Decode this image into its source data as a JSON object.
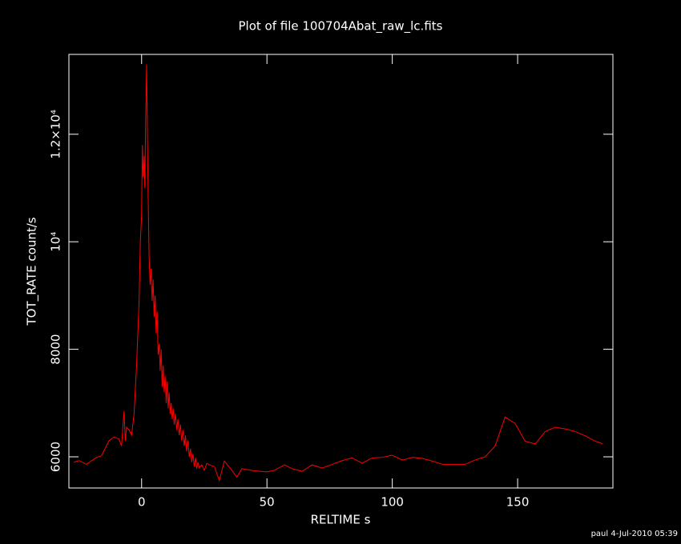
{
  "chart_data": {
    "type": "line",
    "title": "Plot of file 100704Abat_raw_lc.fits",
    "xlabel": "RELTIME  s",
    "ylabel": "TOT_RATE  count/s",
    "footer": "paul  4-Jul-2010 05:39",
    "xlim": [
      -29,
      188
    ],
    "ylim": [
      5420,
      13485
    ],
    "xticks": [
      0,
      50,
      100,
      150
    ],
    "yticks": [
      6000,
      8000,
      {
        "value": 10000,
        "label": "10⁴"
      },
      {
        "value": 12000,
        "label": "1.2×10⁴"
      }
    ],
    "x": [
      -27,
      -25,
      -22,
      -18,
      -16,
      -13,
      -11,
      -9,
      -8,
      -7,
      -6.5,
      -6,
      -5,
      -4,
      -3,
      -2,
      -1,
      -0.5,
      0,
      0.3,
      0.6,
      1,
      1.3,
      1.6,
      2,
      2.3,
      2.6,
      3,
      3.4,
      3.8,
      4.2,
      4.6,
      5,
      5.4,
      5.8,
      6.2,
      6.6,
      7,
      7.4,
      7.8,
      8.2,
      8.6,
      9,
      9.4,
      9.8,
      10.2,
      10.6,
      11,
      11.4,
      11.8,
      12.2,
      12.6,
      13,
      13.5,
      14,
      14.5,
      15,
      15.5,
      16,
      16.5,
      17,
      17.5,
      18,
      18.5,
      19,
      19.5,
      20,
      20.5,
      21,
      21.5,
      22,
      22.5,
      23,
      24,
      25,
      26,
      27,
      29,
      31,
      33,
      36,
      38,
      40,
      45,
      50,
      53,
      57,
      60,
      64,
      68,
      72,
      76,
      80,
      84,
      88,
      92,
      96,
      100,
      104,
      108,
      112,
      116,
      120,
      125,
      129,
      133,
      137,
      141,
      145,
      149,
      153,
      157,
      161,
      165,
      169,
      173,
      177,
      181,
      184
    ],
    "series": [
      {
        "name": "TOT_RATE",
        "color": "#ff0000",
        "values": [
          5900,
          5930,
          5860,
          5990,
          6020,
          6300,
          6370,
          6330,
          6200,
          6850,
          6300,
          6550,
          6500,
          6400,
          6800,
          7700,
          8900,
          10000,
          10500,
          11800,
          11200,
          11600,
          11000,
          12200,
          13300,
          12000,
          10900,
          9700,
          9200,
          9500,
          8900,
          9300,
          8600,
          9000,
          8300,
          8700,
          7900,
          8100,
          7600,
          8000,
          7300,
          7700,
          7200,
          7500,
          7000,
          7400,
          6900,
          7200,
          6800,
          7000,
          6700,
          6900,
          6600,
          6800,
          6500,
          6700,
          6400,
          6600,
          6300,
          6500,
          6200,
          6400,
          6100,
          6300,
          6000,
          6150,
          5900,
          6050,
          5820,
          5980,
          5780,
          5900,
          5800,
          5850,
          5750,
          5880,
          5850,
          5820,
          5560,
          5920,
          5750,
          5620,
          5780,
          5740,
          5720,
          5750,
          5850,
          5780,
          5730,
          5850,
          5790,
          5860,
          5930,
          5980,
          5880,
          5980,
          5990,
          6030,
          5940,
          5990,
          5970,
          5920,
          5860,
          5860,
          5860,
          5940,
          6000,
          6200,
          6740,
          6620,
          6290,
          6240,
          6470,
          6550,
          6520,
          6470,
          6390,
          6290,
          6240
        ]
      }
    ]
  }
}
